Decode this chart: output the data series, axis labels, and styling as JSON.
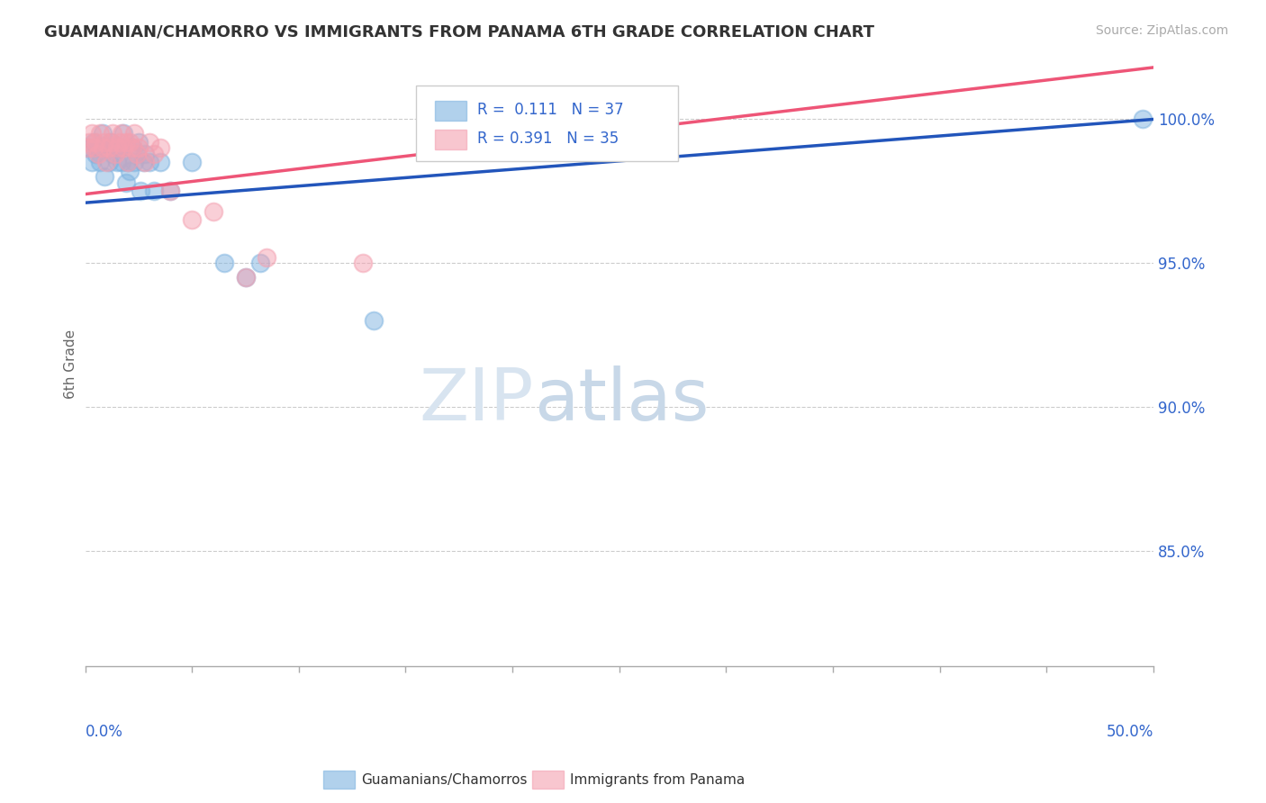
{
  "title": "GUAMANIAN/CHAMORRO VS IMMIGRANTS FROM PANAMA 6TH GRADE CORRELATION CHART",
  "source": "Source: ZipAtlas.com",
  "ylabel": "6th Grade",
  "xlim": [
    0.0,
    50.0
  ],
  "ylim": [
    81.0,
    102.0
  ],
  "yticks": [
    85.0,
    90.0,
    95.0,
    100.0
  ],
  "ytick_labels": [
    "85.0%",
    "90.0%",
    "95.0%",
    "100.0%"
  ],
  "watermark_ZIP": "ZIP",
  "watermark_atlas": "atlas",
  "legend_R_blue": "0.111",
  "legend_N_blue": "37",
  "legend_R_pink": "0.391",
  "legend_N_pink": "35",
  "blue_color": "#7EB3E0",
  "pink_color": "#F4A0B0",
  "trendline_blue": "#2255BB",
  "trendline_pink": "#EE5577",
  "blue_trend_x0": 0.0,
  "blue_trend_y0": 97.1,
  "blue_trend_x1": 50.0,
  "blue_trend_y1": 100.0,
  "pink_trend_x0": 0.0,
  "pink_trend_y0": 97.4,
  "pink_trend_x1": 50.0,
  "pink_trend_y1": 101.8,
  "blue_scatter_x": [
    0.2,
    0.3,
    0.4,
    0.5,
    0.6,
    0.7,
    0.8,
    0.9,
    1.0,
    1.1,
    1.2,
    1.3,
    1.4,
    1.5,
    1.6,
    1.7,
    1.8,
    1.9,
    2.0,
    2.1,
    2.2,
    2.3,
    2.4,
    2.5,
    2.6,
    2.7,
    2.8,
    3.0,
    3.2,
    3.5,
    4.0,
    5.0,
    6.5,
    7.5,
    8.2,
    13.5,
    49.5
  ],
  "blue_scatter_y": [
    99.0,
    98.5,
    99.2,
    98.8,
    99.0,
    98.5,
    99.5,
    98.0,
    99.0,
    98.5,
    99.2,
    98.8,
    99.0,
    98.5,
    99.0,
    98.5,
    99.5,
    97.8,
    98.5,
    98.2,
    99.0,
    98.5,
    98.8,
    99.2,
    97.5,
    98.5,
    98.8,
    98.5,
    97.5,
    98.5,
    97.5,
    98.5,
    95.0,
    94.5,
    95.0,
    93.0,
    100.0
  ],
  "pink_scatter_x": [
    0.1,
    0.2,
    0.3,
    0.4,
    0.5,
    0.6,
    0.7,
    0.8,
    0.9,
    1.0,
    1.1,
    1.2,
    1.3,
    1.4,
    1.5,
    1.6,
    1.7,
    1.8,
    1.9,
    2.0,
    2.1,
    2.2,
    2.3,
    2.4,
    2.5,
    2.8,
    3.0,
    3.2,
    3.5,
    4.0,
    5.0,
    6.0,
    7.5,
    8.5,
    13.0
  ],
  "pink_scatter_y": [
    99.0,
    99.2,
    99.5,
    99.0,
    99.2,
    98.8,
    99.5,
    99.0,
    99.2,
    98.5,
    99.0,
    99.2,
    99.5,
    98.8,
    99.0,
    99.2,
    99.5,
    99.0,
    99.2,
    98.5,
    99.2,
    99.0,
    99.5,
    98.8,
    99.0,
    98.5,
    99.2,
    98.8,
    99.0,
    97.5,
    96.5,
    96.8,
    94.5,
    95.2,
    95.0
  ],
  "grid_color": "#CCCCCC",
  "background_color": "#FFFFFF"
}
